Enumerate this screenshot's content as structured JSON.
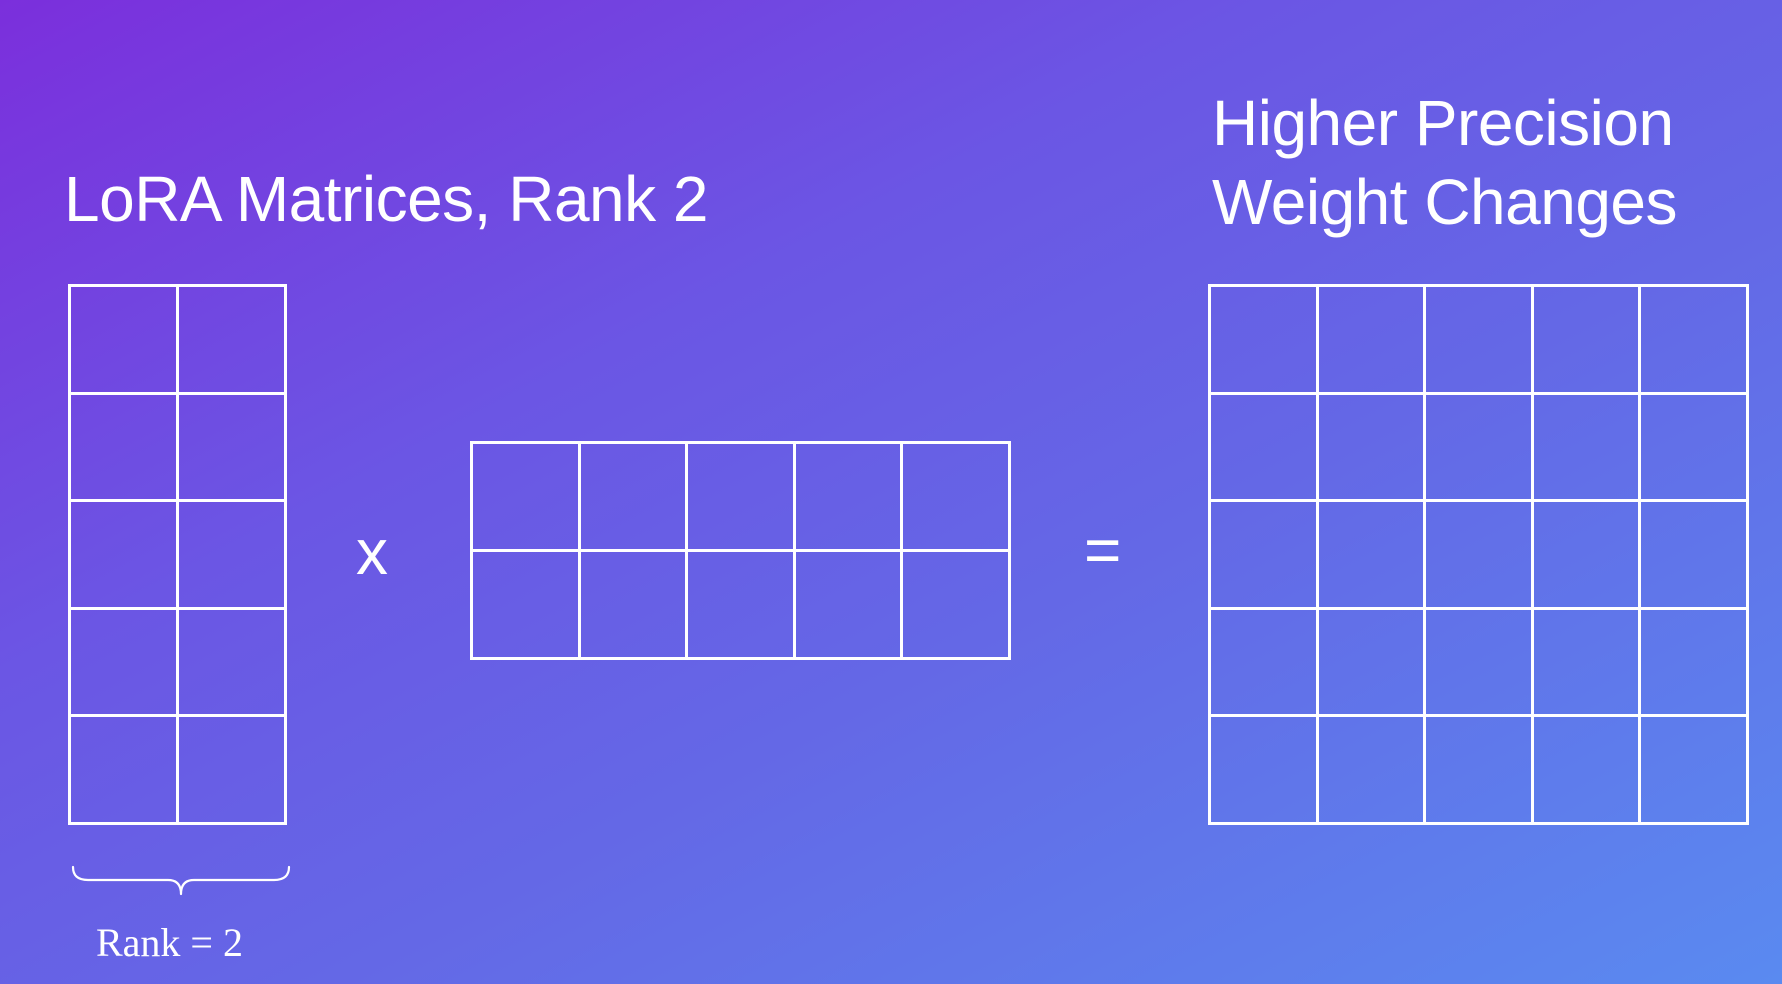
{
  "titles": {
    "left": "LoRA Matrices, Rank 2",
    "right_line1": "Higher Precision",
    "right_line2": "Weight Changes"
  },
  "operators": {
    "times": "x",
    "equals": "="
  },
  "matrices": {
    "a": {
      "rows": 5,
      "cols": 2
    },
    "b": {
      "rows": 2,
      "cols": 5
    },
    "c": {
      "rows": 5,
      "cols": 5
    }
  },
  "rank_label": "Rank = 2",
  "colors": {
    "line": "#ffffff",
    "gradient_start": "#7b2fdc",
    "gradient_end": "#5a8af0"
  }
}
